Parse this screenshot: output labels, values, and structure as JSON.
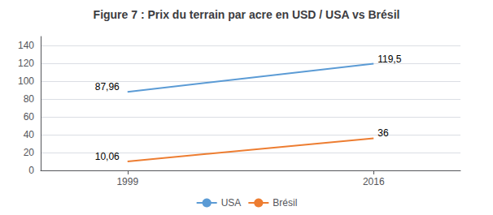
{
  "chart_data": {
    "type": "line",
    "title": "Figure 7 : Prix du terrain par acre en USD / USA vs Brésil",
    "x": [
      1999,
      2016
    ],
    "series": [
      {
        "name": "USA",
        "color": "#5b9bd5",
        "values": [
          87.96,
          119.5
        ],
        "value_labels": [
          "87,96",
          "119,5"
        ]
      },
      {
        "name": "Brésil",
        "color": "#ed7d31",
        "values": [
          10.06,
          36
        ],
        "value_labels": [
          "10,06",
          "36"
        ]
      }
    ],
    "xlim": [
      1993,
      2022
    ],
    "xticks": [
      1999,
      2016
    ],
    "ylim": [
      0,
      150
    ],
    "yticks": [
      0,
      20,
      40,
      60,
      80,
      100,
      120,
      140
    ],
    "grid": true,
    "legend": "bottom",
    "data_labels": true
  }
}
